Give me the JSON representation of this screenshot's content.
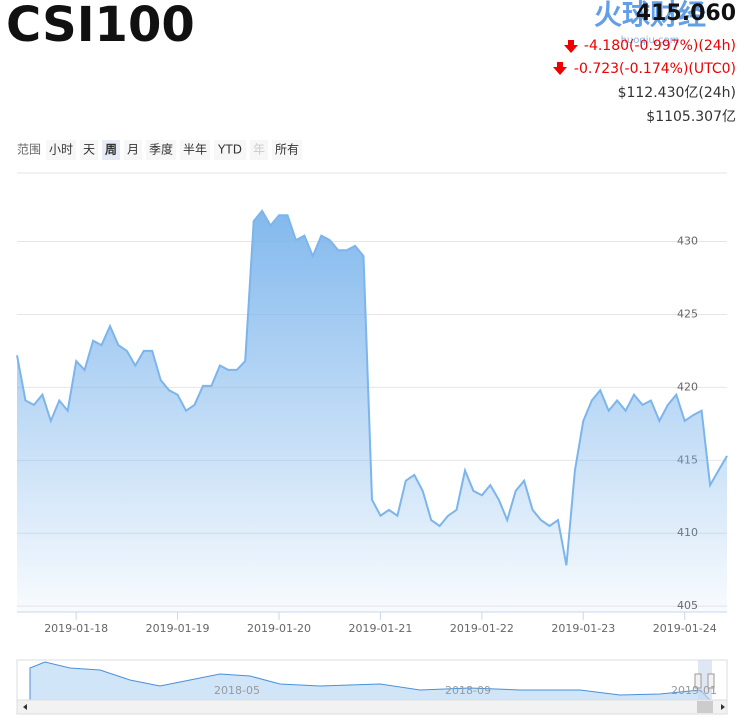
{
  "header": {
    "title": "CSI100",
    "price": "415.060",
    "change_24h": "-4.180(-0.997%)(24h)",
    "change_utc0": "-0.723(-0.174%)(UTC0)",
    "volume_24h": "$112.430亿(24h)",
    "market_cap": "$1105.307亿"
  },
  "watermark": {
    "name": "火球财经",
    "site": "huoqiu.com"
  },
  "range_selector": {
    "label": "范围",
    "buttons": [
      "小时",
      "天",
      "周",
      "月",
      "季度",
      "半年",
      "YTD",
      "年",
      "所有"
    ],
    "selected": "周",
    "disabled": [
      "年"
    ]
  },
  "navigator": {
    "labels": [
      "2018-05",
      "2018-09",
      "2019-01"
    ]
  },
  "chart_data": {
    "type": "area",
    "color": "#7cb5ec",
    "categories": [
      null,
      null,
      null,
      null,
      null,
      null,
      null,
      "2019-01-18",
      null,
      null,
      null,
      null,
      null,
      null,
      null,
      null,
      null,
      null,
      null,
      "2019-01-19",
      null,
      null,
      null,
      null,
      null,
      null,
      null,
      null,
      null,
      null,
      null,
      "2019-01-20",
      null,
      null,
      null,
      null,
      null,
      null,
      null,
      null,
      null,
      null,
      null,
      "2019-01-21",
      null,
      null,
      null,
      null,
      null,
      null,
      null,
      null,
      null,
      null,
      null,
      "2019-01-22",
      null,
      null,
      null,
      null,
      null,
      null,
      null,
      null,
      null,
      null,
      null,
      "2019-01-23",
      null,
      null,
      null,
      null,
      null,
      null,
      null,
      null,
      null,
      null,
      null,
      "2019-01-24",
      null,
      null,
      null,
      null,
      null
    ],
    "values": [
      422.2,
      419.1,
      418.8,
      419.5,
      417.7,
      419.1,
      418.4,
      421.8,
      421.2,
      423.2,
      422.9,
      424.2,
      422.9,
      422.5,
      421.5,
      422.5,
      422.5,
      420.5,
      419.8,
      419.5,
      418.4,
      418.8,
      420.1,
      420.1,
      421.5,
      421.2,
      421.2,
      421.8,
      431.4,
      432.1,
      431.1,
      431.8,
      431.8,
      430.1,
      430.4,
      429.0,
      430.4,
      430.1,
      429.4,
      429.4,
      429.7,
      429.0,
      412.3,
      411.2,
      411.6,
      411.2,
      413.6,
      414.0,
      412.9,
      410.9,
      410.5,
      411.2,
      411.6,
      414.3,
      412.9,
      412.6,
      413.3,
      412.3,
      410.9,
      412.9,
      413.6,
      411.6,
      410.9,
      410.5,
      410.9,
      407.8,
      414.3,
      417.7,
      419.1,
      419.8,
      418.4,
      419.1,
      418.4,
      419.5,
      418.8,
      419.1,
      417.7,
      418.8,
      419.5,
      417.7,
      418.1,
      418.4,
      413.3,
      414.3,
      415.3
    ],
    "ylim": [
      404.6,
      434.7
    ],
    "yticks": [
      405,
      410,
      415,
      420,
      425,
      430
    ],
    "grid": true
  }
}
